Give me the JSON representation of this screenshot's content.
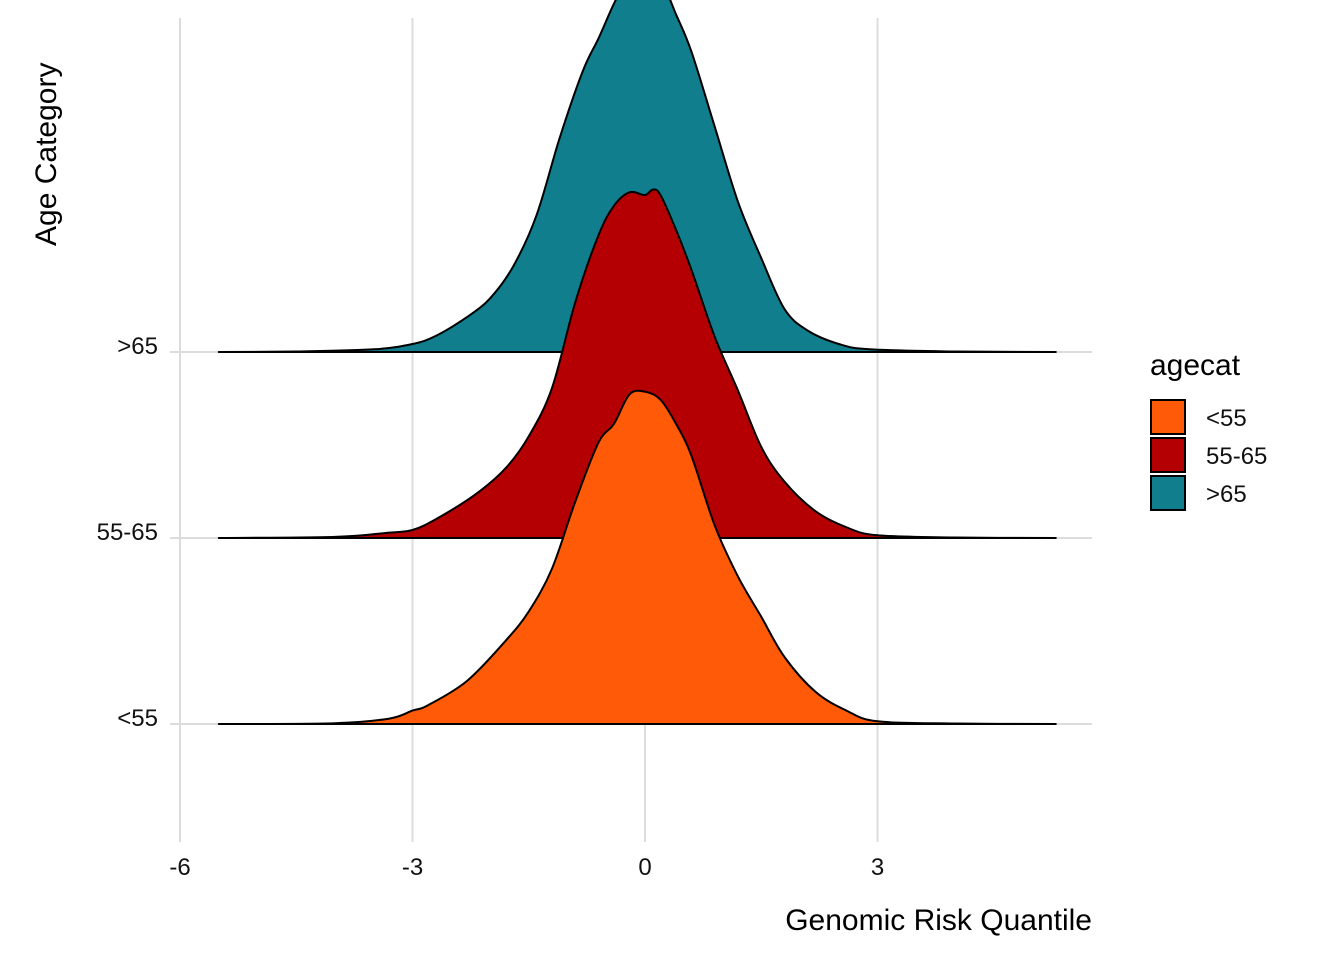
{
  "chart_data": {
    "type": "ridgeline",
    "xlabel": "Genomic Risk Quantile",
    "ylabel": "Age Category",
    "x_ticks": [
      -6,
      -3,
      0,
      3
    ],
    "xlim": [
      -6.5,
      5.8
    ],
    "grid": true,
    "legend": {
      "title": "agecat",
      "placement": "right",
      "entries": [
        {
          "label": "<55",
          "color": "#FF5A08"
        },
        {
          "label": "55-65",
          "color": "#B50003"
        },
        {
          "label": ">65",
          "color": "#117E8E"
        }
      ]
    },
    "categories": [
      "<55",
      "55-65",
      ">65"
    ],
    "series": [
      {
        "name": "<55",
        "color": "#FF5A08",
        "x": [
          -5.5,
          -4.0,
          -3.3,
          -3.0,
          -2.8,
          -2.3,
          -1.8,
          -1.5,
          -1.2,
          -0.9,
          -0.6,
          -0.4,
          -0.2,
          0.0,
          0.2,
          0.4,
          0.6,
          0.9,
          1.2,
          1.5,
          1.8,
          2.2,
          2.6,
          3.0,
          4.0,
          5.3
        ],
        "y": [
          0.0,
          0.003,
          0.02,
          0.05,
          0.07,
          0.16,
          0.31,
          0.42,
          0.58,
          0.83,
          1.05,
          1.12,
          1.23,
          1.24,
          1.21,
          1.12,
          1.0,
          0.74,
          0.55,
          0.4,
          0.25,
          0.12,
          0.05,
          0.01,
          0.002,
          0.0
        ]
      },
      {
        "name": "55-65",
        "color": "#B50003",
        "x": [
          -5.5,
          -4.0,
          -3.3,
          -3.0,
          -2.7,
          -2.2,
          -1.8,
          -1.5,
          -1.2,
          -0.9,
          -0.6,
          -0.4,
          -0.2,
          0.0,
          0.1,
          0.2,
          0.4,
          0.6,
          0.9,
          1.2,
          1.5,
          1.8,
          2.2,
          2.6,
          3.0,
          4.0,
          5.3
        ],
        "y": [
          0.0,
          0.004,
          0.02,
          0.03,
          0.07,
          0.16,
          0.26,
          0.38,
          0.56,
          0.88,
          1.13,
          1.24,
          1.29,
          1.28,
          1.3,
          1.28,
          1.15,
          1.0,
          0.75,
          0.55,
          0.34,
          0.21,
          0.1,
          0.04,
          0.01,
          0.002,
          0.0
        ]
      },
      {
        "name": ">65",
        "color": "#117E8E",
        "x": [
          -5.5,
          -4.5,
          -3.5,
          -3.0,
          -2.7,
          -2.3,
          -2.0,
          -1.7,
          -1.4,
          -1.1,
          -0.8,
          -0.6,
          -0.4,
          -0.2,
          0.0,
          0.2,
          0.4,
          0.6,
          0.9,
          1.2,
          1.5,
          1.8,
          2.1,
          2.5,
          2.9,
          4.0,
          5.3
        ],
        "y": [
          0.0,
          0.002,
          0.01,
          0.03,
          0.06,
          0.13,
          0.2,
          0.32,
          0.51,
          0.8,
          1.05,
          1.17,
          1.3,
          1.41,
          1.41,
          1.39,
          1.26,
          1.12,
          0.84,
          0.56,
          0.35,
          0.16,
          0.08,
          0.03,
          0.01,
          0.002,
          0.0
        ]
      }
    ]
  }
}
